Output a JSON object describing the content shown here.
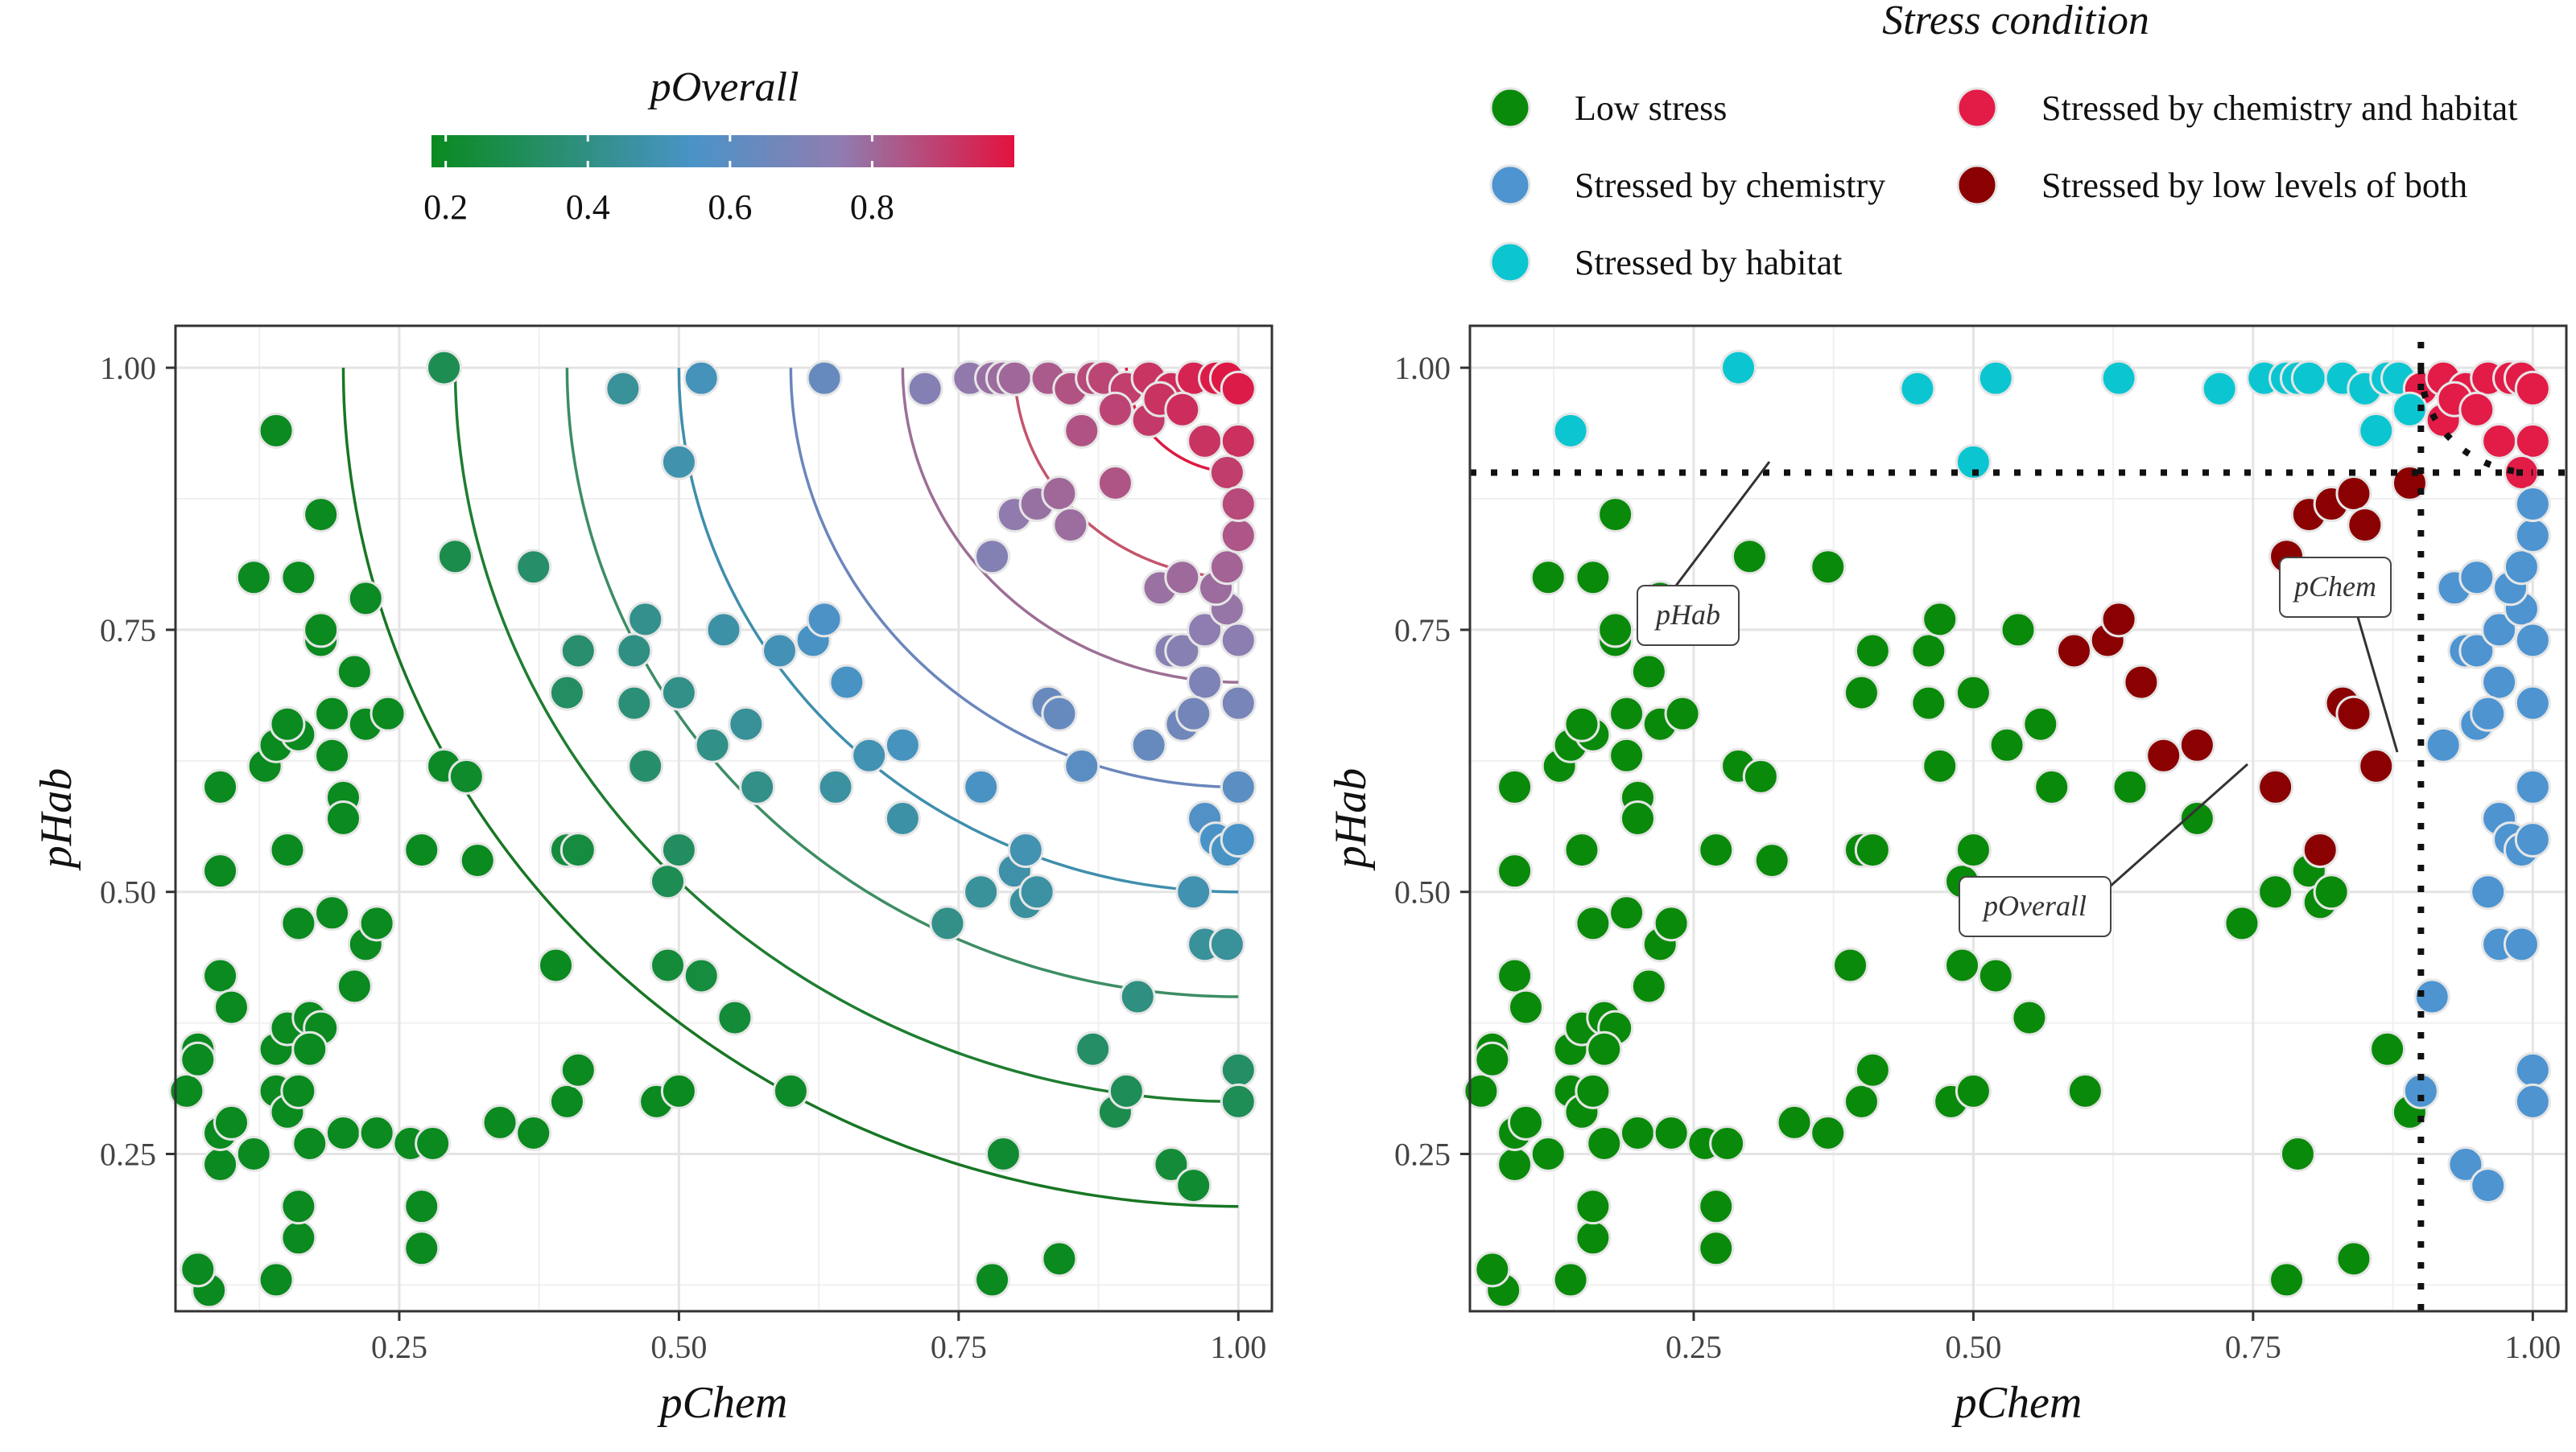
{
  "chart_data": [
    {
      "type": "scatter",
      "panel": "left",
      "xlabel": "pChem",
      "ylabel": "pHab",
      "xlim": [
        0.05,
        1.03
      ],
      "ylim": [
        0.1,
        1.04
      ],
      "xticks": [
        "0.25",
        "0.50",
        "0.75",
        "1.00"
      ],
      "yticks": [
        "0.25",
        "0.50",
        "0.75",
        "1.00"
      ],
      "grid": true,
      "legend": {
        "title": "pOverall",
        "type": "colorbar",
        "placement": "top",
        "range": [
          0.18,
          1.0
        ],
        "ticks": [
          "0.2",
          "0.4",
          "0.6",
          "0.8"
        ],
        "colors": [
          "#0a8a1f",
          "#4a93c8",
          "#8f7db0",
          "#e3123f"
        ]
      },
      "contours": [
        {
          "level": 0.9,
          "color": "#dc1a42"
        },
        {
          "level": 0.8,
          "color": "#c4546c"
        },
        {
          "level": 0.7,
          "color": "#9d6f95"
        },
        {
          "level": 0.6,
          "color": "#6b86bc"
        },
        {
          "level": 0.5,
          "color": "#3f8eac"
        },
        {
          "level": 0.4,
          "color": "#3d8d64"
        },
        {
          "level": 0.3,
          "color": "#1e7d31"
        },
        {
          "level": 0.2,
          "color": "#187624"
        }
      ]
    },
    {
      "type": "scatter",
      "panel": "right",
      "xlabel": "pChem",
      "ylabel": "pHab",
      "xlim": [
        0.05,
        1.03
      ],
      "ylim": [
        0.1,
        1.04
      ],
      "xticks": [
        "0.25",
        "0.50",
        "0.75",
        "1.00"
      ],
      "yticks": [
        "0.25",
        "0.50",
        "0.75",
        "1.00"
      ],
      "grid": true,
      "legend": {
        "title": "Stress condition",
        "placement": "top",
        "entries": [
          {
            "label": "Low stress",
            "color": "#0a8a0a"
          },
          {
            "label": "Stressed by chemistry",
            "color": "#4d94d1"
          },
          {
            "label": "Stressed by habitat",
            "color": "#0bc6d1"
          },
          {
            "label": "Stressed by chemistry and habitat",
            "color": "#e31b47"
          },
          {
            "label": "Stressed by low levels of both",
            "color": "#8b0000"
          }
        ]
      },
      "thresholds": {
        "pChem": 0.9,
        "pHab": 0.9,
        "pOverall": 0.9
      },
      "annotations": [
        "pHab",
        "pChem",
        "pOverall"
      ]
    }
  ],
  "points": [
    [
      0.08,
      0.12
    ],
    [
      0.14,
      0.13
    ],
    [
      0.16,
      0.17
    ],
    [
      0.16,
      0.2
    ],
    [
      0.07,
      0.14
    ],
    [
      0.06,
      0.31
    ],
    [
      0.07,
      0.35
    ],
    [
      0.07,
      0.34
    ],
    [
      0.09,
      0.24
    ],
    [
      0.09,
      0.27
    ],
    [
      0.1,
      0.28
    ],
    [
      0.12,
      0.25
    ],
    [
      0.14,
      0.31
    ],
    [
      0.15,
      0.29
    ],
    [
      0.16,
      0.31
    ],
    [
      0.09,
      0.42
    ],
    [
      0.1,
      0.39
    ],
    [
      0.14,
      0.35
    ],
    [
      0.15,
      0.37
    ],
    [
      0.17,
      0.38
    ],
    [
      0.18,
      0.37
    ],
    [
      0.17,
      0.35
    ],
    [
      0.17,
      0.26
    ],
    [
      0.2,
      0.27
    ],
    [
      0.23,
      0.27
    ],
    [
      0.26,
      0.26
    ],
    [
      0.28,
      0.26
    ],
    [
      0.27,
      0.2
    ],
    [
      0.27,
      0.16
    ],
    [
      0.09,
      0.52
    ],
    [
      0.09,
      0.6
    ],
    [
      0.13,
      0.62
    ],
    [
      0.15,
      0.54
    ],
    [
      0.14,
      0.64
    ],
    [
      0.16,
      0.65
    ],
    [
      0.16,
      0.47
    ],
    [
      0.19,
      0.48
    ],
    [
      0.21,
      0.41
    ],
    [
      0.22,
      0.45
    ],
    [
      0.23,
      0.47
    ],
    [
      0.2,
      0.59
    ],
    [
      0.2,
      0.57
    ],
    [
      0.15,
      0.66
    ],
    [
      0.19,
      0.63
    ],
    [
      0.19,
      0.67
    ],
    [
      0.21,
      0.71
    ],
    [
      0.22,
      0.66
    ],
    [
      0.24,
      0.67
    ],
    [
      0.18,
      0.74
    ],
    [
      0.18,
      0.75
    ],
    [
      0.22,
      0.78
    ],
    [
      0.16,
      0.8
    ],
    [
      0.12,
      0.8
    ],
    [
      0.18,
      0.86
    ],
    [
      0.14,
      0.94
    ],
    [
      0.27,
      0.54
    ],
    [
      0.32,
      0.53
    ],
    [
      0.29,
      0.62
    ],
    [
      0.31,
      0.61
    ],
    [
      0.34,
      0.28
    ],
    [
      0.37,
      0.27
    ],
    [
      0.4,
      0.3
    ],
    [
      0.41,
      0.33
    ],
    [
      0.39,
      0.43
    ],
    [
      0.4,
      0.54
    ],
    [
      0.41,
      0.54
    ],
    [
      0.3,
      0.82
    ],
    [
      0.37,
      0.81
    ],
    [
      0.29,
      1.0
    ],
    [
      0.45,
      0.98
    ],
    [
      0.5,
      0.91
    ],
    [
      0.52,
      0.99
    ],
    [
      0.63,
      0.99
    ],
    [
      0.4,
      0.69
    ],
    [
      0.41,
      0.73
    ],
    [
      0.46,
      0.73
    ],
    [
      0.46,
      0.68
    ],
    [
      0.47,
      0.62
    ],
    [
      0.47,
      0.76
    ],
    [
      0.49,
      0.51
    ],
    [
      0.5,
      0.54
    ],
    [
      0.5,
      0.69
    ],
    [
      0.53,
      0.64
    ],
    [
      0.54,
      0.75
    ],
    [
      0.56,
      0.66
    ],
    [
      0.57,
      0.6
    ],
    [
      0.59,
      0.73
    ],
    [
      0.62,
      0.74
    ],
    [
      0.64,
      0.6
    ],
    [
      0.63,
      0.76
    ],
    [
      0.48,
      0.3
    ],
    [
      0.5,
      0.31
    ],
    [
      0.49,
      0.43
    ],
    [
      0.52,
      0.42
    ],
    [
      0.55,
      0.38
    ],
    [
      0.6,
      0.31
    ],
    [
      0.65,
      0.7
    ],
    [
      0.67,
      0.63
    ],
    [
      0.7,
      0.64
    ],
    [
      0.7,
      0.57
    ],
    [
      0.74,
      0.47
    ],
    [
      0.77,
      0.6
    ],
    [
      0.77,
      0.5
    ],
    [
      0.78,
      0.13
    ],
    [
      0.79,
      0.25
    ],
    [
      0.8,
      0.52
    ],
    [
      0.81,
      0.54
    ],
    [
      0.81,
      0.49
    ],
    [
      0.82,
      0.5
    ],
    [
      0.72,
      0.98
    ],
    [
      0.76,
      0.99
    ],
    [
      0.78,
      0.99
    ],
    [
      0.79,
      0.99
    ],
    [
      0.8,
      0.99
    ],
    [
      0.83,
      0.99
    ],
    [
      0.85,
      0.98
    ],
    [
      0.87,
      0.99
    ],
    [
      0.88,
      0.99
    ],
    [
      0.9,
      0.98
    ],
    [
      0.92,
      0.99
    ],
    [
      0.94,
      0.98
    ],
    [
      0.96,
      0.99
    ],
    [
      0.98,
      0.99
    ],
    [
      0.99,
      0.99
    ],
    [
      1.0,
      0.98
    ],
    [
      0.86,
      0.94
    ],
    [
      0.89,
      0.96
    ],
    [
      0.92,
      0.95
    ],
    [
      0.93,
      0.97
    ],
    [
      0.95,
      0.96
    ],
    [
      0.97,
      0.93
    ],
    [
      1.0,
      0.93
    ],
    [
      0.78,
      0.82
    ],
    [
      0.8,
      0.86
    ],
    [
      0.82,
      0.87
    ],
    [
      0.84,
      0.88
    ],
    [
      0.85,
      0.85
    ],
    [
      0.89,
      0.89
    ],
    [
      0.93,
      0.79
    ],
    [
      0.95,
      0.8
    ],
    [
      0.94,
      0.73
    ],
    [
      0.95,
      0.73
    ],
    [
      0.97,
      0.75
    ],
    [
      0.97,
      0.7
    ],
    [
      0.99,
      0.77
    ],
    [
      1.0,
      0.74
    ],
    [
      0.98,
      0.79
    ],
    [
      0.99,
      0.81
    ],
    [
      1.0,
      0.84
    ],
    [
      0.99,
      0.9
    ],
    [
      1.0,
      0.87
    ],
    [
      0.83,
      0.68
    ],
    [
      0.84,
      0.67
    ],
    [
      0.86,
      0.62
    ],
    [
      0.92,
      0.64
    ],
    [
      0.95,
      0.66
    ],
    [
      0.96,
      0.67
    ],
    [
      1.0,
      0.68
    ],
    [
      0.97,
      0.57
    ],
    [
      0.98,
      0.55
    ],
    [
      0.99,
      0.54
    ],
    [
      1.0,
      0.6
    ],
    [
      0.96,
      0.5
    ],
    [
      0.97,
      0.45
    ],
    [
      0.99,
      0.45
    ],
    [
      1.0,
      0.55
    ],
    [
      0.87,
      0.35
    ],
    [
      0.89,
      0.29
    ],
    [
      0.9,
      0.31
    ],
    [
      0.91,
      0.4
    ],
    [
      0.84,
      0.15
    ],
    [
      0.94,
      0.24
    ],
    [
      0.96,
      0.22
    ],
    [
      1.0,
      0.33
    ],
    [
      1.0,
      0.3
    ]
  ]
}
